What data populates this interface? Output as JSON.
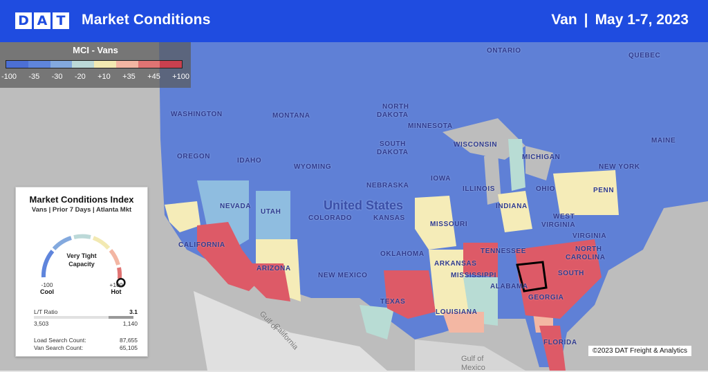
{
  "header": {
    "logo_letters": [
      "D",
      "A",
      "T"
    ],
    "title": "Market Conditions",
    "equipment": "Van",
    "separator": "|",
    "date_range": "May 1-7, 2023"
  },
  "legend": {
    "title": "MCI - Vans",
    "ticks": [
      "-100",
      "-35",
      "-30",
      "-20",
      "+10",
      "+35",
      "+45",
      "+100"
    ],
    "colors": [
      "#4c6fd4",
      "#5f85dc",
      "#83a9de",
      "#bcd9d8",
      "#f2e9b2",
      "#f3b6a3",
      "#e07473",
      "#c9404f"
    ]
  },
  "map": {
    "colors": {
      "cool": "#5f80d6",
      "ocean": "#bdbdbd",
      "land_other": "#e0e0e0",
      "hot": "#dd5a67",
      "warm": "#f5ecb8",
      "mild_cool": "#8fbde0",
      "teal": "#b8dcd4",
      "light_hot": "#f3b7a3"
    },
    "labels": {
      "ontario": "ONTARIO",
      "quebec": "QUEBEC",
      "washington": "WASHINGTON",
      "montana": "MONTANA",
      "north_dakota_1": "NORTH",
      "north_dakota_2": "DAKOTA",
      "minnesota": "MINNESOTA",
      "south_dakota_1": "SOUTH",
      "south_dakota_2": "DAKOTA",
      "oregon": "OREGON",
      "idaho": "IDAHO",
      "wyoming": "WYOMING",
      "wisconsin": "WISCONSIN",
      "michigan": "MICHIGAN",
      "new_york": "NEW YORK",
      "maine": "MAINE",
      "nevada": "NEVADA",
      "utah": "UTAH",
      "nebraska": "NEBRASKA",
      "iowa": "IOWA",
      "illinois": "ILLINOIS",
      "indiana": "INDIANA",
      "ohio": "OHIO",
      "penn": "PENN",
      "colorado": "COLORADO",
      "kansas": "KANSAS",
      "missouri": "MISSOURI",
      "west_virginia_1": "WEST",
      "west_virginia_2": "VIRGINIA",
      "virginia": "VIRGINIA",
      "california": "CALIFORNIA",
      "arizona": "ARIZONA",
      "new_mexico": "NEW MEXICO",
      "oklahoma": "OKLAHOMA",
      "arkansas": "ARKANSAS",
      "tennessee": "TENNESSEE",
      "north_carolina_1": "NORTH",
      "north_carolina_2": "CAROLINA",
      "south_carolina": "SOUTH",
      "mississippi": "MISSISSIPPI",
      "alabama": "ALABAMA",
      "georgia": "GEORGIA",
      "texas": "TEXAS",
      "louisiana": "LOUISIANA",
      "florida": "FLORIDA",
      "united_states": "United States",
      "gulf_california_1": "Gulf of",
      "gulf_california_2": "California",
      "gulf_mexico_1": "Gulf of",
      "gulf_mexico_2": "Mexico"
    }
  },
  "mci_card": {
    "title": "Market Conditions Index",
    "subtitle": "Vans | Prior 7 Days | Atlanta Mkt",
    "status_line1": "Very Tight",
    "status_line2": "Capacity",
    "min_value": "-100",
    "min_label": "Cool",
    "max_value": "+100",
    "max_label": "Hot",
    "gauge_level": 1.0,
    "ratio_label": "L/T Ratio",
    "ratio_value": "3.1",
    "loads": "3,503",
    "trucks": "1,140",
    "ratio_fill_fraction": 0.25,
    "load_search_label": "Load Search Count:",
    "load_search_value": "87,655",
    "van_search_label": "Van Search Count:",
    "van_search_value": "65,105"
  },
  "footer": {
    "copyright": "©2023 DAT Freight & Analytics"
  }
}
